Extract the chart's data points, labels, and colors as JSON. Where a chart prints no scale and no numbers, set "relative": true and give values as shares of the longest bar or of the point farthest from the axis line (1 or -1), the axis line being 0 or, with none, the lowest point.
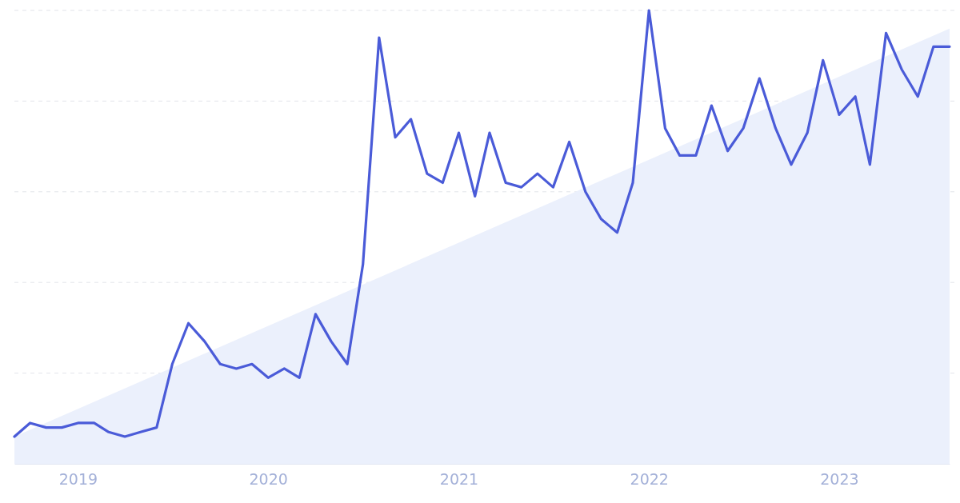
{
  "chart_data": {
    "type": "line",
    "relative": true,
    "grid": "y",
    "tick_labels": "x",
    "line_style": "solid",
    "marker": "none",
    "x": [
      "2018-09",
      "2018-10",
      "2018-11",
      "2018-12",
      "2019-01",
      "2019-02",
      "2019-03",
      "2019-04",
      "2019-05",
      "2019-06",
      "2019-07",
      "2019-08",
      "2019-09",
      "2019-10",
      "2019-11",
      "2019-12",
      "2020-01",
      "2020-02",
      "2020-03",
      "2020-04",
      "2020-05",
      "2020-06",
      "2020-07",
      "2020-08",
      "2020-09",
      "2020-10",
      "2020-11",
      "2020-12",
      "2021-01",
      "2021-02",
      "2021-03",
      "2021-04",
      "2021-05",
      "2021-06",
      "2021-07",
      "2021-08",
      "2021-09",
      "2021-10",
      "2021-11",
      "2021-12",
      "2022-01",
      "2022-02",
      "2022-03",
      "2022-04",
      "2022-05",
      "2022-06",
      "2022-07",
      "2022-08",
      "2022-09",
      "2022-10",
      "2022-11",
      "2022-12",
      "2023-01",
      "2023-02",
      "2023-03",
      "2023-04",
      "2023-05",
      "2023-06",
      "2023-07",
      "2023-08"
    ],
    "xlim": [
      "2018-09",
      "2023-08"
    ],
    "xticks": [
      "2019",
      "2020",
      "2021",
      "2022",
      "2023"
    ],
    "series": [
      {
        "type": "area",
        "color": "#ebf0fc",
        "x": [
          "2018-09",
          "2023-08"
        ],
        "values": [
          0.06,
          0.96
        ]
      },
      {
        "color": "#4a5bd8",
        "values": [
          0.06,
          0.09,
          0.08,
          0.08,
          0.09,
          0.09,
          0.07,
          0.06,
          0.07,
          0.08,
          0.22,
          0.31,
          0.27,
          0.22,
          0.21,
          0.22,
          0.19,
          0.21,
          0.19,
          0.33,
          0.27,
          0.22,
          0.44,
          0.94,
          0.72,
          0.76,
          0.64,
          0.62,
          0.73,
          0.59,
          0.73,
          0.62,
          0.61,
          0.64,
          0.61,
          0.71,
          0.6,
          0.54,
          0.51,
          0.62,
          1,
          0.74,
          0.68,
          0.68,
          0.79,
          0.69,
          0.74,
          0.85,
          0.74,
          0.66,
          0.73,
          0.89,
          0.77,
          0.81,
          0.66,
          0.95,
          0.87,
          0.81,
          0.92,
          0.92
        ]
      }
    ]
  }
}
